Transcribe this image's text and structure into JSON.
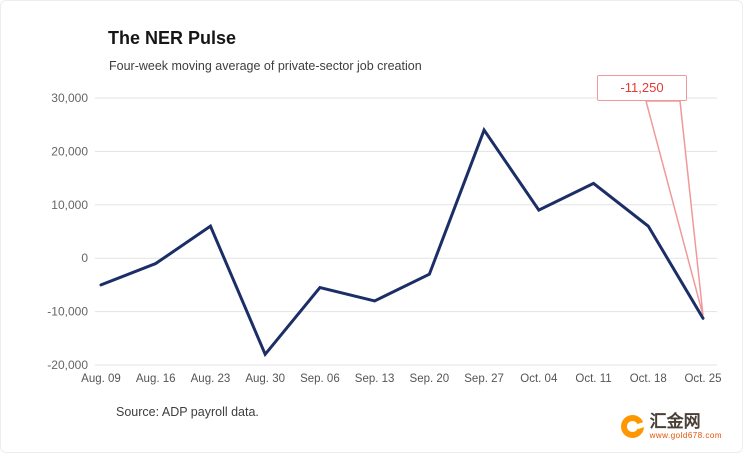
{
  "header": {
    "title": "The NER Pulse",
    "subtitle": "Four-week moving average of private-sector job creation"
  },
  "chart_data": {
    "type": "line",
    "title": "The NER Pulse",
    "subtitle": "Four-week moving average of private-sector job creation",
    "categories": [
      "Aug. 09",
      "Aug. 16",
      "Aug. 23",
      "Aug. 30",
      "Sep. 06",
      "Sep. 13",
      "Sep. 20",
      "Sep. 27",
      "Oct. 04",
      "Oct. 11",
      "Oct. 18",
      "Oct. 25"
    ],
    "values": [
      -5000,
      -1000,
      6000,
      -18000,
      -5500,
      -8000,
      -3000,
      24000,
      9000,
      14000,
      6000,
      -11250
    ],
    "ylim": [
      -20000,
      30000
    ],
    "yticks": [
      -20000,
      -10000,
      0,
      10000,
      20000,
      30000
    ],
    "grid": true,
    "line_color": "#1b2e66",
    "grid_color": "#e3e3e3",
    "annotation": {
      "label": "-11,250",
      "target_category": "Oct. 25",
      "color": "#e53935",
      "border_color": "#ef9a9a"
    }
  },
  "footer": {
    "source": "Source: ADP payroll data."
  },
  "logo": {
    "brand": "汇金网",
    "url": "www.gold678.com"
  }
}
